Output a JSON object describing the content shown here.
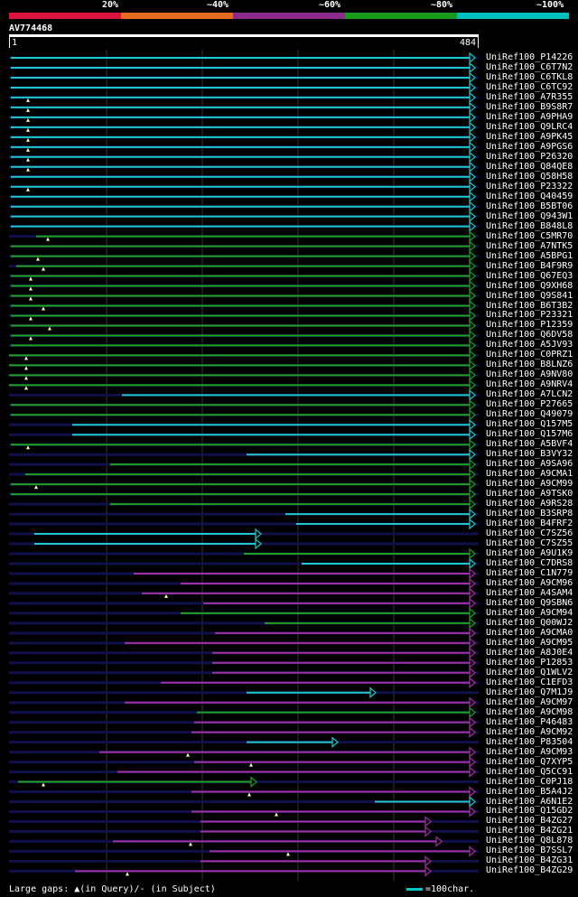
{
  "legend": {
    "labels": [
      "20%",
      "~40%",
      "~60%",
      "~80%",
      "~100%"
    ],
    "colors": [
      "#dc143c",
      "#e26b20",
      "#8b2a8b",
      "#1a9a1a",
      "#00bfbf"
    ]
  },
  "query": {
    "id": "AV774468",
    "start": "1",
    "end": "484"
  },
  "colors": {
    "cyan": "#1ec8c8",
    "green": "#1fa01f",
    "purple": "#a030a0",
    "bg_line": "#10104a",
    "arrow_fill": "#000"
  },
  "hits": [
    {
      "label": "UniRef100_P14226",
      "c": "cyan",
      "x1": 12,
      "x2": 525,
      "arrow": true,
      "m": []
    },
    {
      "label": "UniRef100_C6T7N2",
      "c": "cyan",
      "x1": 12,
      "x2": 525,
      "arrow": true,
      "m": []
    },
    {
      "label": "UniRef100_C6TKL8",
      "c": "cyan",
      "x1": 12,
      "x2": 525,
      "arrow": true,
      "m": []
    },
    {
      "label": "UniRef100_C6TC92",
      "c": "cyan",
      "x1": 12,
      "x2": 525,
      "arrow": true,
      "m": []
    },
    {
      "label": "UniRef100_A7R355",
      "c": "cyan",
      "x1": 12,
      "x2": 525,
      "arrow": true,
      "m": [
        31
      ]
    },
    {
      "label": "UniRef100_B9S8R7",
      "c": "cyan",
      "x1": 12,
      "x2": 525,
      "arrow": true,
      "m": [
        31
      ]
    },
    {
      "label": "UniRef100_A9PHA9",
      "c": "cyan",
      "x1": 12,
      "x2": 525,
      "arrow": true,
      "m": [
        31
      ]
    },
    {
      "label": "UniRef100_Q9LRC4",
      "c": "cyan",
      "x1": 12,
      "x2": 525,
      "arrow": true,
      "m": [
        31
      ]
    },
    {
      "label": "UniRef100_A9PK45",
      "c": "cyan",
      "x1": 12,
      "x2": 525,
      "arrow": true,
      "m": [
        31
      ]
    },
    {
      "label": "UniRef100_A9PGS6",
      "c": "cyan",
      "x1": 12,
      "x2": 525,
      "arrow": true,
      "m": [
        31
      ]
    },
    {
      "label": "UniRef100_P26320",
      "c": "cyan",
      "x1": 12,
      "x2": 525,
      "arrow": true,
      "m": [
        31
      ]
    },
    {
      "label": "UniRef100_Q84QE8",
      "c": "cyan",
      "x1": 12,
      "x2": 525,
      "arrow": true,
      "m": [
        31
      ]
    },
    {
      "label": "UniRef100_Q58H58",
      "c": "cyan",
      "x1": 12,
      "x2": 525,
      "arrow": true,
      "m": []
    },
    {
      "label": "UniRef100_P23322",
      "c": "cyan",
      "x1": 12,
      "x2": 525,
      "arrow": true,
      "m": [
        31
      ]
    },
    {
      "label": "UniRef100_Q40459",
      "c": "cyan",
      "x1": 12,
      "x2": 525,
      "arrow": true,
      "m": []
    },
    {
      "label": "UniRef100_B5BT06",
      "c": "cyan",
      "x1": 12,
      "x2": 525,
      "arrow": true,
      "m": []
    },
    {
      "label": "UniRef100_Q943W1",
      "c": "cyan",
      "x1": 12,
      "x2": 525,
      "arrow": true,
      "m": []
    },
    {
      "label": "UniRef100_B848L8",
      "c": "cyan",
      "x1": 12,
      "x2": 525,
      "arrow": true,
      "m": []
    },
    {
      "label": "UniRef100_C5MR70",
      "c": "green",
      "x1": 40,
      "x2": 525,
      "arrow": true,
      "m": [
        53
      ]
    },
    {
      "label": "UniRef100_A7NTK5",
      "c": "green",
      "x1": 12,
      "x2": 525,
      "arrow": true,
      "m": []
    },
    {
      "label": "UniRef100_A5BPG1",
      "c": "green",
      "x1": 12,
      "x2": 525,
      "arrow": true,
      "m": [
        42
      ]
    },
    {
      "label": "UniRef100_B4F9R9",
      "c": "green",
      "x1": 18,
      "x2": 525,
      "arrow": true,
      "m": [
        48
      ]
    },
    {
      "label": "UniRef100_Q67EQ3",
      "c": "green",
      "x1": 12,
      "x2": 525,
      "arrow": true,
      "m": [
        34
      ]
    },
    {
      "label": "UniRef100_Q9XH68",
      "c": "green",
      "x1": 12,
      "x2": 525,
      "arrow": true,
      "m": [
        34
      ]
    },
    {
      "label": "UniRef100_Q9S841",
      "c": "green",
      "x1": 12,
      "x2": 525,
      "arrow": true,
      "m": [
        34
      ]
    },
    {
      "label": "UniRef100_B6T3B2",
      "c": "green",
      "x1": 12,
      "x2": 525,
      "arrow": true,
      "m": [
        48
      ]
    },
    {
      "label": "UniRef100_P23321",
      "c": "green",
      "x1": 12,
      "x2": 525,
      "arrow": true,
      "m": [
        34
      ]
    },
    {
      "label": "UniRef100_P12359",
      "c": "green",
      "x1": 12,
      "x2": 525,
      "arrow": true,
      "m": [
        55
      ]
    },
    {
      "label": "UniRef100_Q6DV58",
      "c": "green",
      "x1": 12,
      "x2": 525,
      "arrow": true,
      "m": [
        34
      ]
    },
    {
      "label": "UniRef100_A5JV93",
      "c": "green",
      "x1": 12,
      "x2": 525,
      "arrow": true,
      "m": []
    },
    {
      "label": "UniRef100_C0PRZ1",
      "c": "green",
      "x1": 10,
      "x2": 525,
      "arrow": true,
      "m": [
        29
      ]
    },
    {
      "label": "UniRef100_B8LNZ6",
      "c": "green",
      "x1": 10,
      "x2": 525,
      "arrow": true,
      "m": [
        29
      ]
    },
    {
      "label": "UniRef100_A9NV80",
      "c": "green",
      "x1": 10,
      "x2": 525,
      "arrow": true,
      "m": [
        29
      ]
    },
    {
      "label": "UniRef100_A9NRV4",
      "c": "green",
      "x1": 10,
      "x2": 525,
      "arrow": true,
      "m": [
        29
      ]
    },
    {
      "label": "UniRef100_A7LCN2",
      "c": "cyan",
      "x1": 135,
      "x2": 525,
      "arrow": true,
      "m": []
    },
    {
      "label": "UniRef100_P27665",
      "c": "green",
      "x1": 12,
      "x2": 525,
      "arrow": true,
      "m": []
    },
    {
      "label": "UniRef100_Q49079",
      "c": "green",
      "x1": 12,
      "x2": 525,
      "arrow": true,
      "m": []
    },
    {
      "label": "UniRef100_Q157M5",
      "c": "cyan",
      "x1": 80,
      "x2": 525,
      "arrow": true,
      "m": []
    },
    {
      "label": "UniRef100_Q157M6",
      "c": "cyan",
      "x1": 80,
      "x2": 525,
      "arrow": true,
      "m": []
    },
    {
      "label": "UniRef100_A5BVF4",
      "c": "green",
      "x1": 12,
      "x2": 525,
      "arrow": true,
      "m": [
        31
      ]
    },
    {
      "label": "UniRef100_B3VY32",
      "c": "cyan",
      "x1": 273,
      "x2": 525,
      "arrow": true,
      "m": []
    },
    {
      "label": "UniRef100_A9SA96",
      "c": "green",
      "x1": 122,
      "x2": 525,
      "arrow": true,
      "m": []
    },
    {
      "label": "UniRef100_A9CMA1",
      "c": "green",
      "x1": 28,
      "x2": 525,
      "arrow": true,
      "m": []
    },
    {
      "label": "UniRef100_A9CM99",
      "c": "green",
      "x1": 12,
      "x2": 525,
      "arrow": true,
      "m": [
        40
      ]
    },
    {
      "label": "UniRef100_A9TSK0",
      "c": "green",
      "x1": 12,
      "x2": 525,
      "arrow": true,
      "m": []
    },
    {
      "label": "UniRef100_A9RS28",
      "c": "green",
      "x1": 122,
      "x2": 525,
      "arrow": true,
      "m": []
    },
    {
      "label": "UniRef100_B3SRP8",
      "c": "cyan",
      "x1": 316,
      "x2": 525,
      "arrow": true,
      "m": []
    },
    {
      "label": "UniRef100_B4FRF2",
      "c": "cyan",
      "x1": 328,
      "x2": 525,
      "arrow": true,
      "m": []
    },
    {
      "label": "UniRef100_C7SZ56",
      "c": "cyan",
      "x1": 38,
      "x2": 288,
      "arrow": true,
      "m": []
    },
    {
      "label": "UniRef100_C7SZ55",
      "c": "cyan",
      "x1": 38,
      "x2": 288,
      "arrow": true,
      "m": []
    },
    {
      "label": "UniRef100_A9U1K9",
      "c": "green",
      "x1": 270,
      "x2": 525,
      "arrow": true,
      "m": []
    },
    {
      "label": "UniRef100_C7DRS8",
      "c": "cyan",
      "x1": 334,
      "x2": 525,
      "arrow": true,
      "m": []
    },
    {
      "label": "UniRef100_C1N779",
      "c": "purple",
      "x1": 148,
      "x2": 525,
      "arrow": true,
      "m": []
    },
    {
      "label": "UniRef100_A9CM96",
      "c": "purple",
      "x1": 200,
      "x2": 525,
      "arrow": true,
      "m": []
    },
    {
      "label": "UniRef100_A4SAM4",
      "c": "purple",
      "x1": 157,
      "x2": 525,
      "arrow": true,
      "m": [
        184
      ]
    },
    {
      "label": "UniRef100_Q9SBN6",
      "c": "purple",
      "x1": 225,
      "x2": 525,
      "arrow": true,
      "m": []
    },
    {
      "label": "UniRef100_A9CM94",
      "c": "green",
      "x1": 200,
      "x2": 525,
      "arrow": true,
      "m": []
    },
    {
      "label": "UniRef100_Q00WJ2",
      "c": "green",
      "x1": 293,
      "x2": 525,
      "arrow": true,
      "m": []
    },
    {
      "label": "UniRef100_A9CMA0",
      "c": "purple",
      "x1": 238,
      "x2": 525,
      "arrow": true,
      "m": []
    },
    {
      "label": "UniRef100_A9CM95",
      "c": "purple",
      "x1": 138,
      "x2": 525,
      "arrow": true,
      "m": []
    },
    {
      "label": "UniRef100_A8J0E4",
      "c": "purple",
      "x1": 235,
      "x2": 525,
      "arrow": true,
      "m": []
    },
    {
      "label": "UniRef100_P12853",
      "c": "purple",
      "x1": 235,
      "x2": 525,
      "arrow": true,
      "m": []
    },
    {
      "label": "UniRef100_Q1WLV2",
      "c": "purple",
      "x1": 235,
      "x2": 525,
      "arrow": true,
      "m": []
    },
    {
      "label": "UniRef100_C1EFD3",
      "c": "purple",
      "x1": 178,
      "x2": 525,
      "arrow": true,
      "m": []
    },
    {
      "label": "UniRef100_Q7M1J9",
      "c": "cyan",
      "x1": 273,
      "x2": 415,
      "arrow": true,
      "m": []
    },
    {
      "label": "UniRef100_A9CM97",
      "c": "purple",
      "x1": 138,
      "x2": 525,
      "arrow": true,
      "m": []
    },
    {
      "label": "UniRef100_A9CM98",
      "c": "green",
      "x1": 218,
      "x2": 525,
      "arrow": true,
      "m": []
    },
    {
      "label": "UniRef100_P46483",
      "c": "purple",
      "x1": 215,
      "x2": 525,
      "arrow": true,
      "m": []
    },
    {
      "label": "UniRef100_A9CM92",
      "c": "purple",
      "x1": 212,
      "x2": 525,
      "arrow": true,
      "m": []
    },
    {
      "label": "UniRef100_P83504",
      "c": "cyan",
      "x1": 273,
      "x2": 373,
      "arrow": true,
      "m": []
    },
    {
      "label": "UniRef100_A9CM93",
      "c": "purple",
      "x1": 110,
      "x2": 525,
      "arrow": true,
      "m": [
        208
      ]
    },
    {
      "label": "UniRef100_Q7XYP5",
      "c": "purple",
      "x1": 215,
      "x2": 525,
      "arrow": true,
      "m": [
        278
      ]
    },
    {
      "label": "UniRef100_Q5CC91",
      "c": "purple",
      "x1": 130,
      "x2": 525,
      "arrow": true,
      "m": []
    },
    {
      "label": "UniRef100_C0PJ18",
      "c": "green",
      "x1": 20,
      "x2": 283,
      "arrow": true,
      "m": [
        48
      ]
    },
    {
      "label": "UniRef100_B5A4J2",
      "c": "purple",
      "x1": 212,
      "x2": 525,
      "arrow": true,
      "m": [
        276
      ]
    },
    {
      "label": "UniRef100_A6N1E2",
      "c": "cyan",
      "x1": 415,
      "x2": 525,
      "arrow": true,
      "m": []
    },
    {
      "label": "UniRef100_Q15GD2",
      "c": "purple",
      "x1": 212,
      "x2": 525,
      "arrow": true,
      "m": [
        306
      ]
    },
    {
      "label": "UniRef100_B4ZG27",
      "c": "purple",
      "x1": 222,
      "x2": 476,
      "arrow": true,
      "m": []
    },
    {
      "label": "UniRef100_B4ZG21",
      "c": "purple",
      "x1": 222,
      "x2": 476,
      "arrow": true,
      "m": []
    },
    {
      "label": "UniRef100_Q8L878",
      "c": "purple",
      "x1": 125,
      "x2": 488,
      "arrow": true,
      "m": [
        211
      ]
    },
    {
      "label": "UniRef100_B7SSL7",
      "c": "purple",
      "x1": 232,
      "x2": 525,
      "arrow": true,
      "m": [
        319
      ]
    },
    {
      "label": "UniRef100_B4ZG31",
      "c": "purple",
      "x1": 222,
      "x2": 476,
      "arrow": true,
      "m": []
    },
    {
      "label": "UniRef100_B4ZG29",
      "c": "purple",
      "x1": 83,
      "x2": 476,
      "arrow": true,
      "m": [
        141
      ]
    }
  ],
  "footer": {
    "gaps_text": "Large gaps: ▲(in Query)/- (in Subject)",
    "scale_text": "=100char."
  }
}
